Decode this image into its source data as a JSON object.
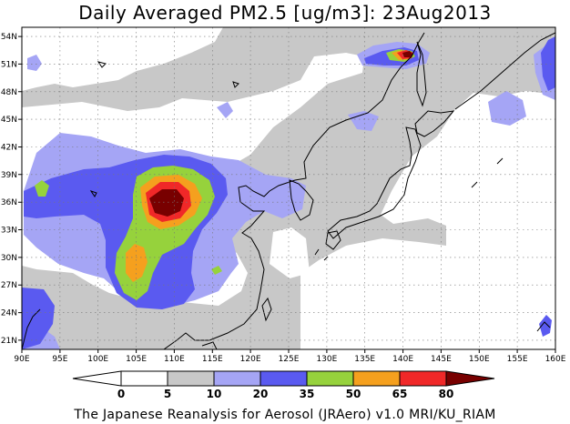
{
  "title": "Daily Averaged PM2.5 [ug/m3]: 23Aug2013",
  "footer": "The Japanese Reanalysis for Aerosol (JRAero) v1.0 MRI/KU_RIAM",
  "map": {
    "lon_range": [
      90,
      160
    ],
    "lat_range": [
      20,
      55
    ],
    "lon_ticks": [
      "90E",
      "95E",
      "100E",
      "105E",
      "110E",
      "115E",
      "120E",
      "125E",
      "130E",
      "135E",
      "140E",
      "145E",
      "150E",
      "155E",
      "160E"
    ],
    "lat_ticks": [
      "54N",
      "51N",
      "48N",
      "45N",
      "42N",
      "39N",
      "36N",
      "33N",
      "30N",
      "27N",
      "24N",
      "21N"
    ],
    "grid": "dotted"
  },
  "colorbar": {
    "levels": [
      "0",
      "5",
      "10",
      "20",
      "35",
      "50",
      "65",
      "80"
    ],
    "colors": [
      "#ffffff",
      "#c8c8c8",
      "#a5a5f5",
      "#5a5af0",
      "#96d23c",
      "#f5a01e",
      "#f02828",
      "#780000"
    ]
  }
}
